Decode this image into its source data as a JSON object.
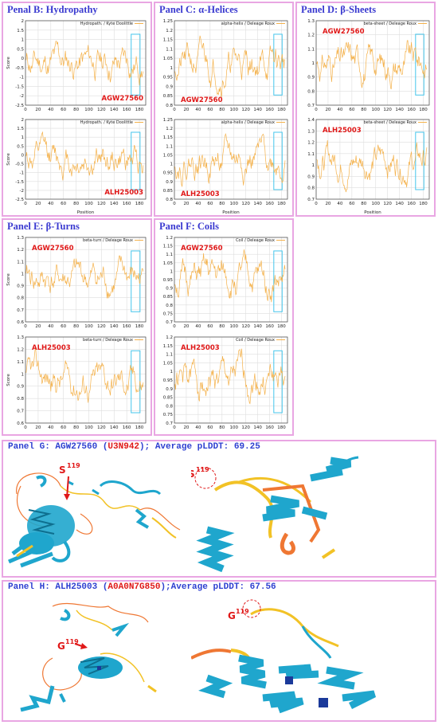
{
  "colors": {
    "border": "#e9a6e3",
    "title": "#3a3ad0",
    "line": "#f4b14a",
    "highlight": "#45c6ec",
    "label": "#e01818",
    "helix": "#1fa6cd",
    "high": "#f2c226",
    "low": "#ef7733"
  },
  "common": {
    "xlabel": "Position",
    "ylabel": "Score"
  },
  "panels": {
    "B": {
      "title": "Penal B: Hydropathy"
    },
    "C": {
      "title": "Panel C: α-Helices"
    },
    "D": {
      "title": "Panel D: β-Sheets"
    },
    "E": {
      "title": "Panel E: β-Turns"
    },
    "F": {
      "title": "Panel F: Coils"
    },
    "G": {
      "prefix": "Panel G: AGW27560 (",
      "accession": "U3N942",
      "suffix": "); Average pLDDT: 69.25",
      "site_letter": "S",
      "site_num": "119"
    },
    "H": {
      "prefix": "Panel H: ALH25003 (",
      "accession": "A0A0N7G850",
      "suffix": ");Average pLDDT: 67.56",
      "site_letter": "G",
      "site_num": "119"
    }
  },
  "chart_data": [
    {
      "id": "B1",
      "panel": "B",
      "type": "line",
      "legend": "Hydropath. / Kyte  Doolittle",
      "sample": "AGW27560",
      "xlim": [
        0,
        190
      ],
      "ylim": [
        -2.5,
        2
      ],
      "yticks": [
        2,
        1.5,
        1,
        0.5,
        0,
        -0.5,
        -1,
        -1.5,
        -2,
        -2.5
      ],
      "xticks": [
        0,
        20,
        40,
        60,
        80,
        100,
        120,
        140,
        160,
        180
      ],
      "highlight": [
        167,
        181
      ],
      "ylabel": "Score",
      "seed": 11,
      "values": []
    },
    {
      "id": "B2",
      "panel": "B",
      "type": "line",
      "legend": "Hydropath. / Kyte  Doolittle",
      "sample": "ALH25003",
      "xlim": [
        0,
        190
      ],
      "ylim": [
        -2.5,
        2
      ],
      "yticks": [
        2,
        1.5,
        1,
        0.5,
        0,
        -0.5,
        -1,
        -1.5,
        -2,
        -2.5
      ],
      "xticks": [
        0,
        20,
        40,
        60,
        80,
        100,
        120,
        140,
        160,
        180
      ],
      "highlight": [
        167,
        181
      ],
      "ylabel": "Score",
      "xlabel": "Position",
      "seed": 12,
      "values": []
    },
    {
      "id": "C1",
      "panel": "C",
      "type": "line",
      "legend": "alpha-helix / Deleage  Roux",
      "sample": "AGW27560",
      "sample_pos": "bottom",
      "xlim": [
        0,
        190
      ],
      "ylim": [
        0.8,
        1.25
      ],
      "yticks": [
        1.25,
        1.2,
        1.15,
        1.1,
        1.05,
        1,
        0.95,
        0.9,
        0.85,
        0.8
      ],
      "xticks": [
        0,
        20,
        40,
        60,
        80,
        100,
        120,
        140,
        160,
        180
      ],
      "highlight": [
        167,
        181
      ],
      "seed": 21,
      "values": []
    },
    {
      "id": "C2",
      "panel": "C",
      "type": "line",
      "legend": "alpha-helix / Deleage  Roux",
      "sample": "ALH25003",
      "sample_pos": "bottom",
      "xlim": [
        0,
        190
      ],
      "ylim": [
        0.8,
        1.25
      ],
      "yticks": [
        1.25,
        1.2,
        1.15,
        1.1,
        1.05,
        1,
        0.95,
        0.9,
        0.85,
        0.8
      ],
      "xticks": [
        0,
        20,
        40,
        60,
        80,
        100,
        120,
        140,
        160,
        180
      ],
      "highlight": [
        167,
        181
      ],
      "xlabel": "Position",
      "seed": 22,
      "values": []
    },
    {
      "id": "D1",
      "panel": "D",
      "type": "line",
      "legend": "beta-sheet / Deleage  Roux",
      "sample": "AGW27560",
      "xlim": [
        0,
        190
      ],
      "ylim": [
        0.7,
        1.3
      ],
      "yticks": [
        1.3,
        1.2,
        1.1,
        1,
        0.9,
        0.8,
        0.7
      ],
      "xticks": [
        0,
        20,
        40,
        60,
        80,
        100,
        120,
        140,
        160,
        180
      ],
      "highlight": [
        167,
        181
      ],
      "seed": 31,
      "values": []
    },
    {
      "id": "D2",
      "panel": "D",
      "type": "line",
      "legend": "beta-sheet / Deleage  Roux",
      "sample": "ALH25003",
      "xlim": [
        0,
        190
      ],
      "ylim": [
        0.7,
        1.4
      ],
      "yticks": [
        1.4,
        1.3,
        1.2,
        1.1,
        1,
        0.9,
        0.8,
        0.7
      ],
      "xticks": [
        0,
        20,
        40,
        60,
        80,
        100,
        120,
        140,
        160,
        180
      ],
      "highlight": [
        167,
        181
      ],
      "xlabel": "Position",
      "seed": 32,
      "values": []
    },
    {
      "id": "E1",
      "panel": "E",
      "type": "line",
      "legend": "beta-turn / Deleage  Roux",
      "sample": "AGW27560",
      "xlim": [
        0,
        190
      ],
      "ylim": [
        0.6,
        1.3
      ],
      "yticks": [
        1.3,
        1.2,
        1.1,
        1,
        0.9,
        0.8,
        0.7,
        0.6
      ],
      "xticks": [
        0,
        20,
        40,
        60,
        80,
        100,
        120,
        140,
        160,
        180
      ],
      "highlight": [
        167,
        181
      ],
      "ylabel": "Score",
      "seed": 41,
      "values": []
    },
    {
      "id": "E2",
      "panel": "E",
      "type": "line",
      "legend": "beta-turn / Deleage  Roux",
      "sample": "ALH25003",
      "xlim": [
        0,
        190
      ],
      "ylim": [
        0.6,
        1.3
      ],
      "yticks": [
        1.3,
        1.2,
        1.1,
        1,
        0.9,
        0.8,
        0.7,
        0.6
      ],
      "xticks": [
        0,
        20,
        40,
        60,
        80,
        100,
        120,
        140,
        160,
        180
      ],
      "highlight": [
        167,
        181
      ],
      "ylabel": "Score",
      "seed": 42,
      "values": []
    },
    {
      "id": "F1",
      "panel": "F",
      "type": "line",
      "legend": "Coil / Deleage  Roux",
      "sample": "AGW27560",
      "xlim": [
        0,
        190
      ],
      "ylim": [
        0.7,
        1.2
      ],
      "yticks": [
        1.2,
        1.15,
        1.1,
        1.05,
        1,
        0.95,
        0.9,
        0.85,
        0.8,
        0.75,
        0.7
      ],
      "xticks": [
        0,
        20,
        40,
        60,
        80,
        100,
        120,
        140,
        160,
        180
      ],
      "highlight": [
        167,
        181
      ],
      "seed": 51,
      "values": []
    },
    {
      "id": "F2",
      "panel": "F",
      "type": "line",
      "legend": "Coil / Deleage  Roux",
      "sample": "ALH25003",
      "xlim": [
        0,
        190
      ],
      "ylim": [
        0.7,
        1.2
      ],
      "yticks": [
        1.2,
        1.15,
        1.1,
        1.05,
        1,
        0.95,
        0.9,
        0.85,
        0.8,
        0.75,
        0.7
      ],
      "xticks": [
        0,
        20,
        40,
        60,
        80,
        100,
        120,
        140,
        160,
        180
      ],
      "highlight": [
        167,
        181
      ],
      "seed": 52,
      "values": []
    }
  ]
}
